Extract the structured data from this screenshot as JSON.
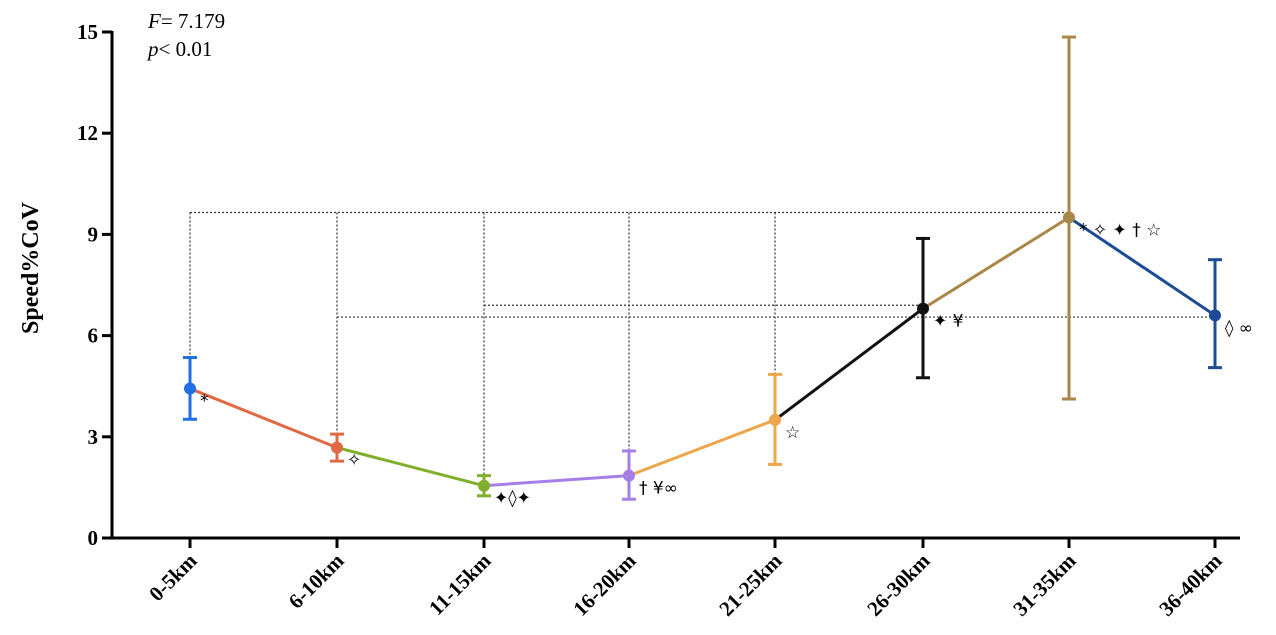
{
  "chart_data": {
    "type": "line",
    "ylabel": "Speed%CoV",
    "xlabel": "",
    "ylim": [
      0,
      15
    ],
    "yticks": [
      0,
      3,
      6,
      9,
      12,
      15
    ],
    "grid": false,
    "stats": {
      "f_label": "F",
      "f_value": "= 7.179",
      "p_label": "p",
      "p_value": "< 0.01"
    },
    "categories": [
      "0-5km",
      "6-10km",
      "11-15km",
      "16-20km",
      "21-25km",
      "26-30km",
      "31-35km",
      "36-40km"
    ],
    "means": [
      4.43,
      2.68,
      1.55,
      1.85,
      3.5,
      6.8,
      9.5,
      6.6
    ],
    "err_upper": [
      5.35,
      3.08,
      1.85,
      2.58,
      4.85,
      8.88,
      14.85,
      8.25
    ],
    "err_lower": [
      3.52,
      2.28,
      1.25,
      1.15,
      2.18,
      4.75,
      4.12,
      5.05
    ],
    "colors": [
      "#1f6fe8",
      "#e06a43",
      "#7fb02b",
      "#a77ee8",
      "#eea64a",
      "#111111",
      "#a88748",
      "#1c4c96"
    ],
    "annotations": [
      "*",
      "✧",
      "✦◊✦",
      "† ¥∞",
      "☆",
      "✦ ¥",
      "* ✧ ✦ † ☆",
      "◊ ∞"
    ],
    "brackets": [
      {
        "from": 0,
        "to": 6,
        "y": 9.65
      },
      {
        "from": 1,
        "to": 7,
        "y": 6.55
      },
      {
        "from": 2,
        "to": 5,
        "y": 6.9
      }
    ],
    "verticals": [
      {
        "at": 0,
        "y": 9.65
      },
      {
        "at": 1,
        "y": 9.65
      },
      {
        "at": 2,
        "y": 9.65
      },
      {
        "at": 3,
        "y": 9.65
      },
      {
        "at": 4,
        "y": 9.65
      }
    ]
  }
}
